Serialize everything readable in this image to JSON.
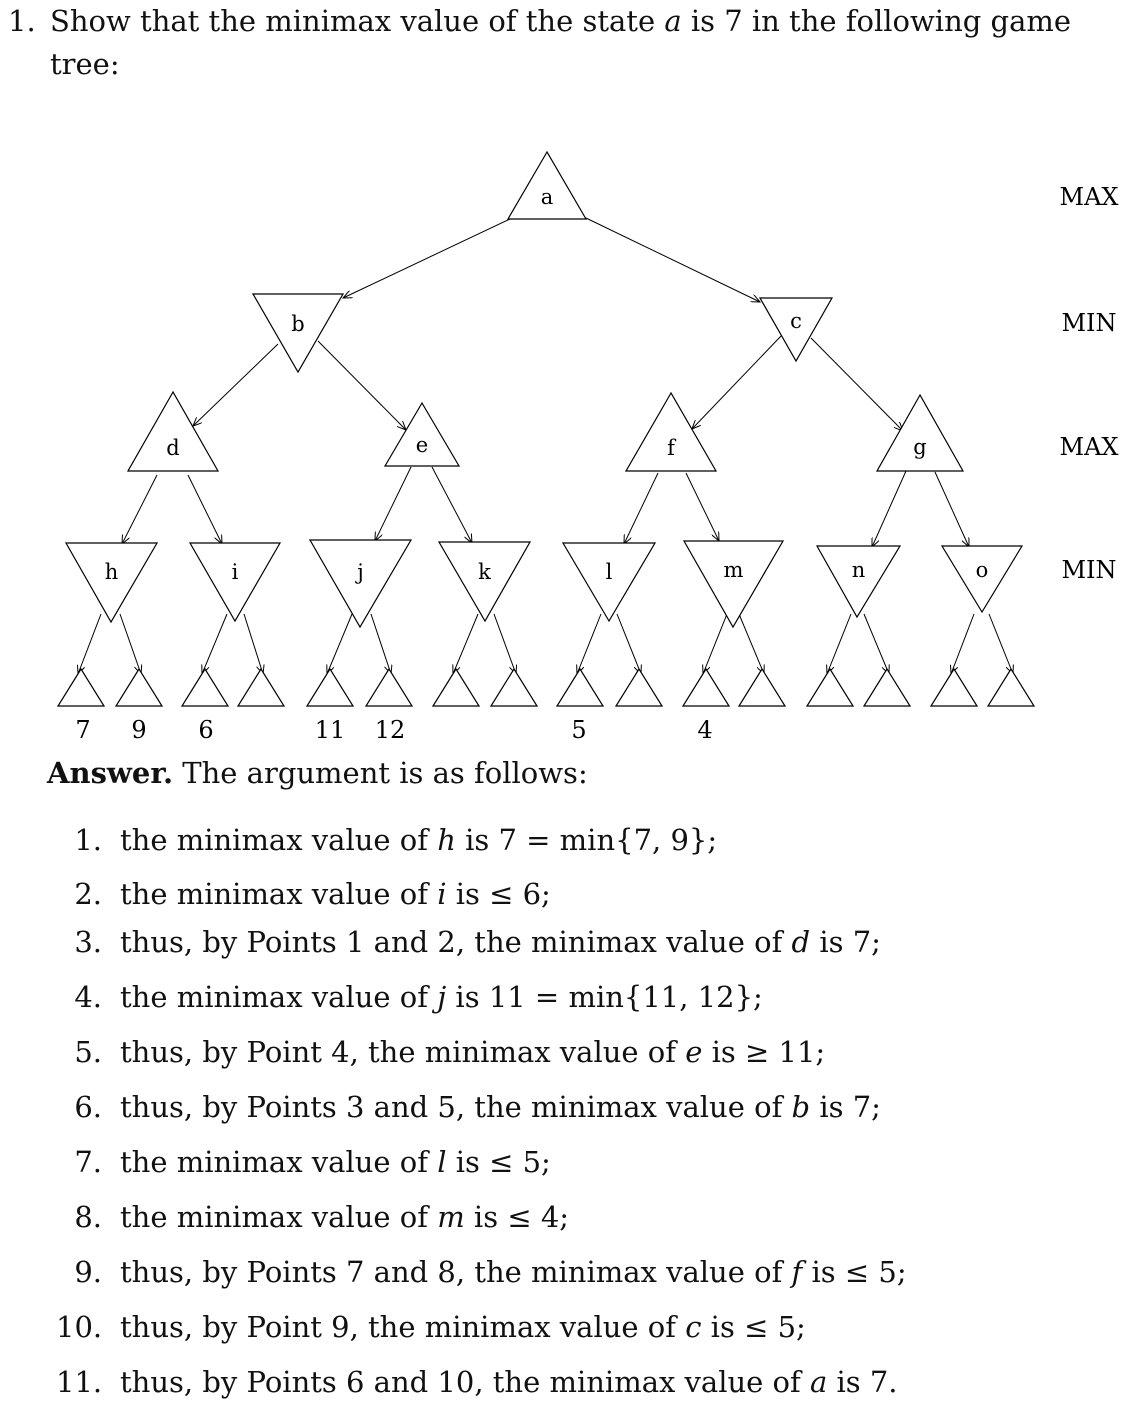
{
  "question": {
    "number": "1.",
    "text_before": "Show that the minimax value of the state ",
    "var": "a",
    "text_after": " is 7 in the following game tree:"
  },
  "tree": {
    "level_labels": [
      "MAX",
      "MIN",
      "MAX",
      "MIN"
    ],
    "nodes": {
      "a": "a",
      "b": "b",
      "c": "c",
      "d": "d",
      "e": "e",
      "f": "f",
      "g": "g",
      "h": "h",
      "i": "i",
      "j": "j",
      "k": "k",
      "l": "l",
      "m": "m",
      "n": "n",
      "o": "o"
    },
    "leaf_values": [
      "7",
      "9",
      "6",
      "11",
      "12",
      "5",
      "4"
    ]
  },
  "answer": {
    "heading": "Answer.",
    "intro": "The argument is as follows:",
    "steps": [
      {
        "num": "1.",
        "parts": [
          "the minimax value of ",
          "h",
          " is 7 = min{7, 9};"
        ]
      },
      {
        "num": "2.",
        "parts": [
          "the minimax value of ",
          "i",
          " is ≤ 6;"
        ]
      },
      {
        "num": "3.",
        "parts": [
          "thus, by Points 1 and 2, the minimax value of ",
          "d",
          " is 7;"
        ]
      },
      {
        "num": "4.",
        "parts": [
          "the minimax value of ",
          "j",
          " is 11 = min{11, 12};"
        ]
      },
      {
        "num": "5.",
        "parts": [
          "thus, by Point 4, the minimax value of ",
          "e",
          " is ≥ 11;"
        ]
      },
      {
        "num": "6.",
        "parts": [
          "thus, by Points 3 and 5, the minimax value of ",
          "b",
          " is 7;"
        ]
      },
      {
        "num": "7.",
        "parts": [
          "the minimax value of ",
          "l",
          " is ≤ 5;"
        ]
      },
      {
        "num": "8.",
        "parts": [
          "the minimax value of ",
          "m",
          " is ≤ 4;"
        ]
      },
      {
        "num": "9.",
        "parts": [
          "thus, by Points 7 and 8, the minimax value of ",
          "f",
          " is ≤ 5;"
        ]
      },
      {
        "num": "10.",
        "parts": [
          "thus, by Point 9, the minimax value of ",
          "c",
          " is ≤ 5;"
        ]
      },
      {
        "num": "11.",
        "parts": [
          "thus, by Points 6 and 10, the minimax value of ",
          "a",
          " is 7."
        ]
      }
    ]
  }
}
